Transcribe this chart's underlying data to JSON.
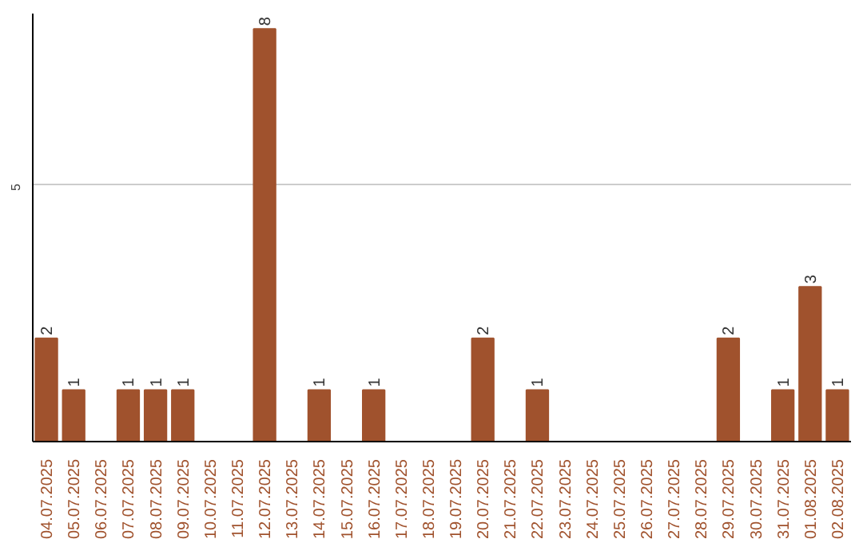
{
  "chart_data": {
    "type": "bar",
    "categories": [
      "04.07.2025",
      "05.07.2025",
      "06.07.2025",
      "07.07.2025",
      "08.07.2025",
      "09.07.2025",
      "10.07.2025",
      "11.07.2025",
      "12.07.2025",
      "13.07.2025",
      "14.07.2025",
      "15.07.2025",
      "16.07.2025",
      "17.07.2025",
      "18.07.2025",
      "19.07.2025",
      "20.07.2025",
      "21.07.2025",
      "22.07.2025",
      "23.07.2025",
      "24.07.2025",
      "25.07.2025",
      "26.07.2025",
      "27.07.2025",
      "28.07.2025",
      "29.07.2025",
      "30.07.2025",
      "31.07.2025",
      "01.08.2025",
      "02.08.2025"
    ],
    "values": [
      2,
      1,
      0,
      1,
      1,
      1,
      0,
      0,
      8,
      0,
      1,
      0,
      1,
      0,
      0,
      0,
      2,
      0,
      1,
      0,
      0,
      0,
      0,
      0,
      0,
      2,
      0,
      1,
      3,
      1
    ],
    "value_labels": [
      "2",
      "1",
      null,
      "1",
      "1",
      "1",
      null,
      null,
      "8",
      null,
      "1",
      null,
      "1",
      null,
      null,
      null,
      "2",
      null,
      "1",
      null,
      null,
      null,
      null,
      null,
      null,
      "2",
      null,
      "1",
      "3",
      "1"
    ],
    "color": "#a0522d",
    "ylim": [
      0,
      8.3
    ],
    "yticks": [
      5
    ],
    "grid": "y"
  }
}
